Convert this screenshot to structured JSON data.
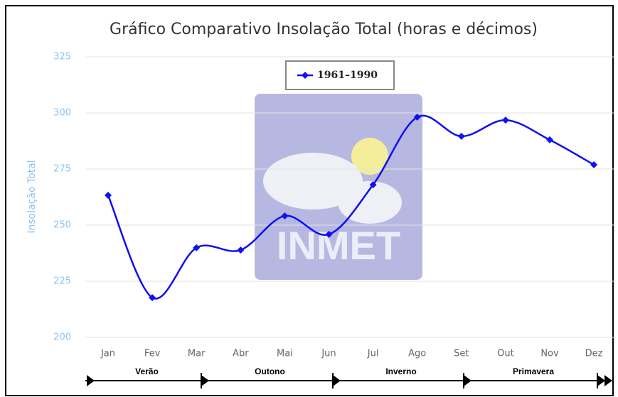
{
  "chart_data": {
    "type": "line",
    "title": "Gráfico Comparativo Insolação Total (horas e décimos)",
    "y_label": "Insolação Total",
    "watermark": "INMET",
    "categories": [
      "Jan",
      "Fev",
      "Mar",
      "Abr",
      "Mai",
      "Jun",
      "Jul",
      "Ago",
      "Set",
      "Out",
      "Nov",
      "Dez"
    ],
    "series": [
      {
        "name": "1961–1990",
        "color": "#1010f0",
        "values": [
          263.3,
          217.7,
          239.9,
          238.9,
          254.1,
          245.9,
          268,
          298.1,
          289.6,
          296.8,
          288,
          276.9
        ]
      }
    ],
    "ylim": [
      200,
      325
    ],
    "yticks": [
      200,
      225,
      250,
      275,
      300,
      325
    ],
    "grid": true,
    "legend": "top",
    "seasons": [
      "Verão",
      "Outono",
      "Inverno",
      "Primavera"
    ]
  }
}
